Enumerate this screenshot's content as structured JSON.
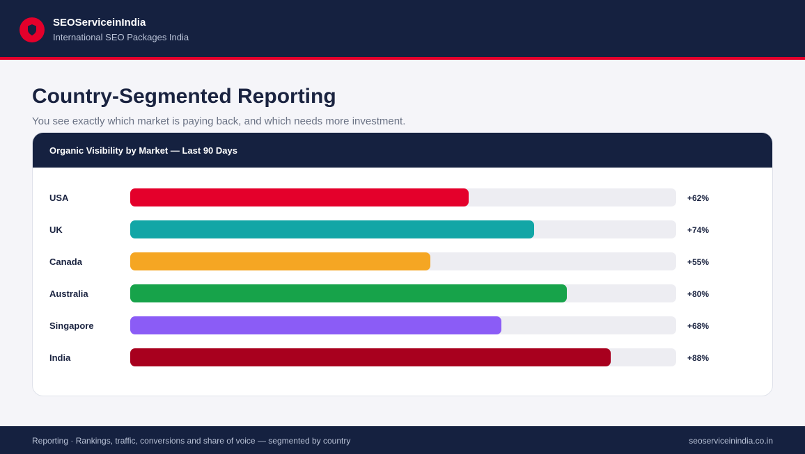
{
  "header": {
    "brand_name": "SEOServiceinIndia",
    "tagline": "International SEO Packages India",
    "logo_icon": "shield-icon"
  },
  "page": {
    "title": "Country-Segmented Reporting",
    "subtitle": "You see exactly which market is paying back, and which needs more investment."
  },
  "card": {
    "title": "Organic Visibility by Market — Last 90 Days"
  },
  "chart_data": {
    "type": "bar",
    "orientation": "horizontal",
    "title": "Organic Visibility by Market — Last 90 Days",
    "categories": [
      "USA",
      "UK",
      "Canada",
      "Australia",
      "Singapore",
      "India"
    ],
    "values": [
      62,
      74,
      55,
      80,
      68,
      88
    ],
    "value_labels": [
      "+62%",
      "+74%",
      "+55%",
      "+80%",
      "+68%",
      "+88%"
    ],
    "colors": [
      "#e4002b",
      "#12a6a6",
      "#f5a623",
      "#17a34a",
      "#8b5cf6",
      "#a8001e"
    ],
    "xlim": [
      0,
      100
    ],
    "grid": false
  },
  "footer": {
    "left": "Reporting · Rankings, traffic, conversions and share of voice — segmented by country",
    "right": "seoserviceinindia.co.in"
  },
  "colors": {
    "navy": "#152140",
    "accent_red": "#e4002b",
    "background": "#f5f5f9",
    "track": "#ededf2"
  }
}
